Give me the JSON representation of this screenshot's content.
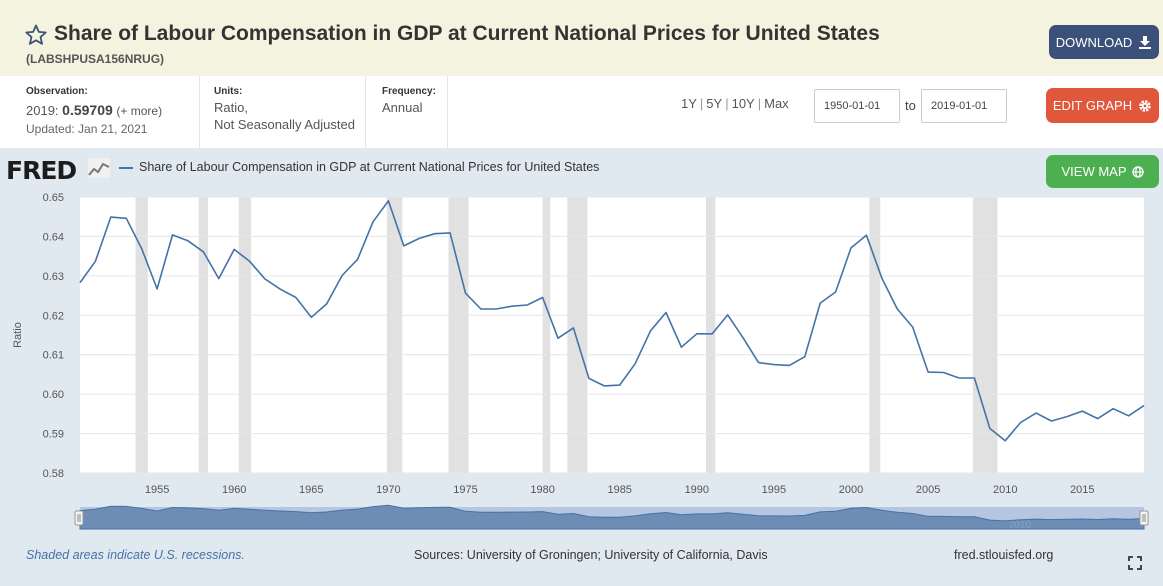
{
  "header": {
    "title": "Share of Labour Compensation in GDP at Current National Prices for United States",
    "series_id": "(LABSHPUSA156NRUG)",
    "download_label": "DOWNLOAD"
  },
  "meta": {
    "observation_label": "Observation:",
    "observation_date": "2019:",
    "observation_value": "0.59709",
    "observation_more": "(+ more)",
    "updated": "Updated: Jan 21, 2021",
    "units_label": "Units:",
    "units_line1": "Ratio,",
    "units_line2": "Not Seasonally Adjusted",
    "frequency_label": "Frequency:",
    "frequency_value": "Annual"
  },
  "controls": {
    "range_buttons": [
      "1Y",
      "5Y",
      "10Y",
      "Max"
    ],
    "start_date": "1950-01-01",
    "to_label": "to",
    "end_date": "2019-01-01",
    "edit_graph_label": "EDIT GRAPH",
    "view_map_label": "VIEW MAP"
  },
  "footer": {
    "recession_note": "Shaded areas indicate U.S. recessions.",
    "sources": "Sources: University of Groningen; University of California, Davis",
    "site": "fred.stlouisfed.org"
  },
  "logo_text": "FRED",
  "colors": {
    "series": "#4572a7",
    "recession": "#e1e1e1",
    "download": "#3c5179",
    "edit_graph": "#e0573c",
    "view_map": "#4cb050"
  },
  "chart_data": {
    "type": "line",
    "title": "Share of Labour Compensation in GDP at Current National Prices for United States",
    "legend": "Share of Labour Compensation in GDP at Current National Prices for United States",
    "ylabel": "Ratio",
    "xlabel": "",
    "ylim": [
      0.58,
      0.65
    ],
    "xlim": [
      1950,
      2019
    ],
    "y_ticks": [
      "0.58",
      "0.59",
      "0.60",
      "0.61",
      "0.62",
      "0.63",
      "0.64",
      "0.65"
    ],
    "x_ticks": [
      "1955",
      "1960",
      "1965",
      "1970",
      "1975",
      "1980",
      "1985",
      "1990",
      "1995",
      "2000",
      "2005",
      "2010",
      "2015"
    ],
    "navigator_label": "2010",
    "recessions": [
      [
        1953.6,
        1954.4
      ],
      [
        1957.7,
        1958.3
      ],
      [
        1960.3,
        1961.1
      ],
      [
        1969.9,
        1970.9
      ],
      [
        1973.9,
        1975.2
      ],
      [
        1980.0,
        1980.5
      ],
      [
        1981.6,
        1982.9
      ],
      [
        1990.6,
        1991.2
      ],
      [
        2001.2,
        2001.9
      ],
      [
        2007.9,
        2009.5
      ]
    ],
    "series": [
      {
        "name": "Share of Labour Compensation in GDP at Current National Prices for United States",
        "x": [
          1950,
          1951,
          1952,
          1953,
          1954,
          1955,
          1956,
          1957,
          1958,
          1959,
          1960,
          1961,
          1962,
          1963,
          1964,
          1965,
          1966,
          1967,
          1968,
          1969,
          1970,
          1971,
          1972,
          1973,
          1974,
          1975,
          1976,
          1977,
          1978,
          1979,
          1980,
          1981,
          1982,
          1983,
          1984,
          1985,
          1986,
          1987,
          1988,
          1989,
          1990,
          1991,
          1992,
          1993,
          1994,
          1995,
          1996,
          1997,
          1998,
          1999,
          2000,
          2001,
          2002,
          2003,
          2004,
          2005,
          2006,
          2007,
          2008,
          2009,
          2010,
          2011,
          2012,
          2013,
          2014,
          2015,
          2016,
          2017,
          2018,
          2019
        ],
        "values": [
          0.6283,
          0.6337,
          0.6449,
          0.6446,
          0.6369,
          0.6267,
          0.6404,
          0.6389,
          0.6361,
          0.6293,
          0.6367,
          0.6337,
          0.6292,
          0.6266,
          0.6245,
          0.6195,
          0.6229,
          0.6301,
          0.6342,
          0.6437,
          0.649,
          0.6376,
          0.6395,
          0.6407,
          0.6409,
          0.6256,
          0.6216,
          0.6216,
          0.6223,
          0.6226,
          0.6245,
          0.6142,
          0.6168,
          0.604,
          0.6021,
          0.6023,
          0.6077,
          0.6161,
          0.6207,
          0.6119,
          0.6153,
          0.6153,
          0.6201,
          0.6143,
          0.608,
          0.6075,
          0.6073,
          0.6095,
          0.6231,
          0.6259,
          0.6371,
          0.6403,
          0.6294,
          0.6216,
          0.617,
          0.6056,
          0.6055,
          0.6041,
          0.6041,
          0.5913,
          0.5882,
          0.5928,
          0.5952,
          0.5932,
          0.5943,
          0.5957,
          0.5938,
          0.5963,
          0.5945,
          0.5971
        ]
      }
    ]
  }
}
